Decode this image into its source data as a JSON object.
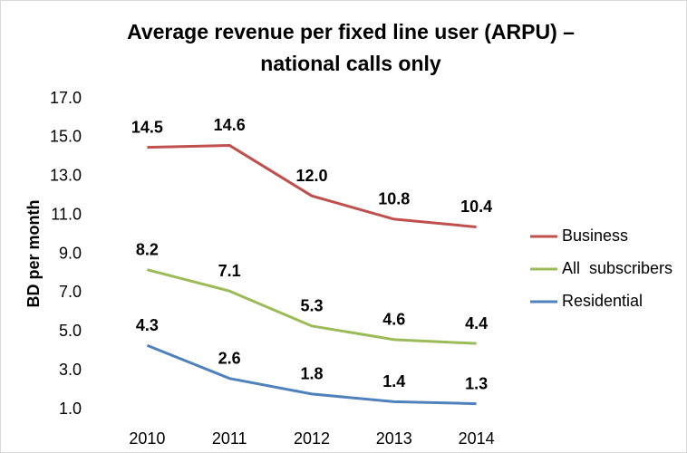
{
  "chart_data": {
    "type": "line",
    "title": [
      "Average revenue per fixed line user (ARPU) –",
      "national calls only"
    ],
    "ylabel": "BD per month",
    "categories": [
      "2010",
      "2011",
      "2012",
      "2013",
      "2014"
    ],
    "series": [
      {
        "name": "Business",
        "color": "#c0504d",
        "values": [
          14.5,
          14.6,
          12.0,
          10.8,
          10.4
        ],
        "value_labels": [
          "14.5",
          "14.6",
          "12.0",
          "10.8",
          "10.4"
        ]
      },
      {
        "name": "All  subscribers",
        "color": "#9bbb59",
        "values": [
          8.2,
          7.1,
          5.3,
          4.6,
          4.4
        ],
        "value_labels": [
          "8.2",
          "7.1",
          "5.3",
          "4.6",
          "4.4"
        ]
      },
      {
        "name": "Residential",
        "color": "#4f81bd",
        "values": [
          4.3,
          2.6,
          1.8,
          1.4,
          1.3
        ],
        "value_labels": [
          "4.3",
          "2.6",
          "1.8",
          "1.4",
          "1.3"
        ]
      }
    ],
    "ylim": [
      1,
      17
    ],
    "yticks": [
      {
        "value": 1,
        "label": "1.0"
      },
      {
        "value": 3,
        "label": "3.0"
      },
      {
        "value": 5,
        "label": "5.0"
      },
      {
        "value": 7,
        "label": "7.0"
      },
      {
        "value": 9,
        "label": "9.0"
      },
      {
        "value": 11,
        "label": "11.0"
      },
      {
        "value": 13,
        "label": "13.0"
      },
      {
        "value": 15,
        "label": "15.0"
      },
      {
        "value": 17,
        "label": "17.0"
      }
    ],
    "grid": false,
    "legend": "right"
  }
}
